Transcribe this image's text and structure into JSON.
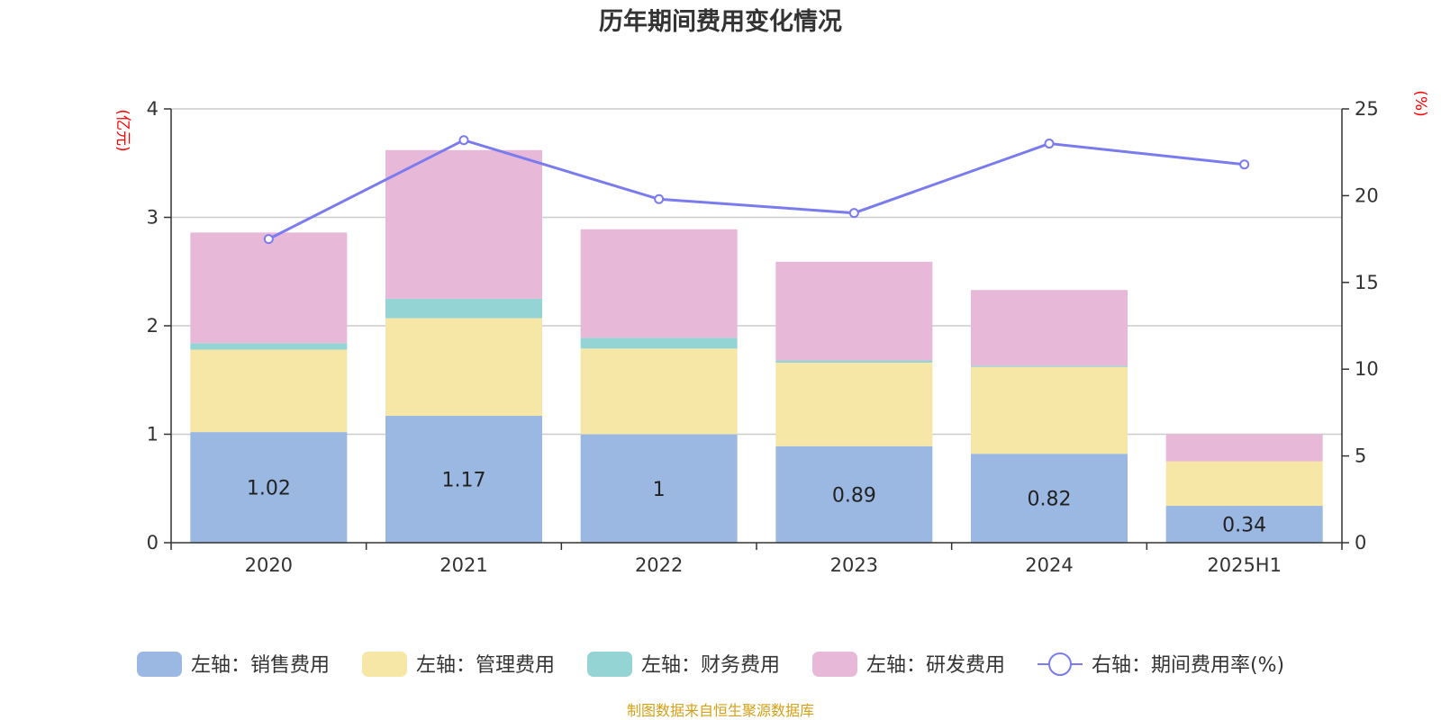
{
  "chart_data": {
    "type": "bar",
    "title": "历年期间费用变化情况",
    "categories": [
      "2020",
      "2021",
      "2022",
      "2023",
      "2024",
      "2025H1"
    ],
    "left_axis": {
      "unit": "(亿元)",
      "ylim": [
        0,
        4
      ],
      "ticks": [
        "0",
        "1",
        "2",
        "3",
        "4"
      ]
    },
    "right_axis": {
      "unit": "(%)",
      "ylim": [
        0,
        25
      ],
      "ticks": [
        "0",
        "5",
        "10",
        "15",
        "20",
        "25"
      ]
    },
    "grid": true,
    "legend_position": "bottom",
    "series": [
      {
        "name": "左轴：销售费用",
        "type": "bar",
        "stack": true,
        "color": "#9bb8e3",
        "values": [
          1.02,
          1.17,
          1,
          0.89,
          0.82,
          0.34
        ],
        "data_labels": [
          "1.02",
          "1.17",
          "1",
          "0.89",
          "0.82",
          "0.34"
        ]
      },
      {
        "name": "左轴：管理费用",
        "type": "bar",
        "stack": true,
        "color": "#f7e7a6",
        "values": [
          0.76,
          0.9,
          0.79,
          0.77,
          0.8,
          0.41
        ]
      },
      {
        "name": "左轴：财务费用",
        "type": "bar",
        "stack": true,
        "color": "#95d4d4",
        "values": [
          0.06,
          0.18,
          0.1,
          0.02,
          0.01,
          0
        ]
      },
      {
        "name": "左轴：研发费用",
        "type": "bar",
        "stack": true,
        "color": "#e7b8d8",
        "values": [
          1.02,
          1.37,
          1.0,
          0.91,
          0.7,
          0.25
        ]
      },
      {
        "name": "右轴：期间费用率(%)",
        "type": "line",
        "axis": "right",
        "color": "#7b7bf0",
        "values": [
          17.5,
          23.2,
          19.8,
          19.0,
          23.0,
          21.8
        ]
      }
    ]
  },
  "footer": {
    "source": "制图数据来自恒生聚源数据库",
    "source_color": "#d4a017"
  }
}
